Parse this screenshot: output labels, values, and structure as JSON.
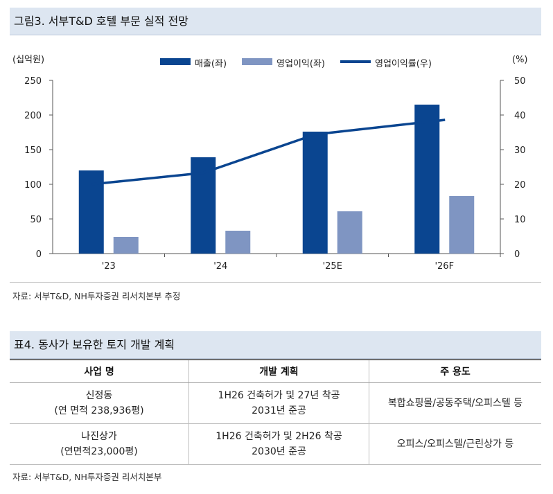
{
  "figure": {
    "title": "그림3. 서부T&D 호텔 부문 실적 전망",
    "source": "자료: 서부T&D, NH투자증권 리서치본부 추정"
  },
  "chart_data": {
    "type": "bar",
    "categories": [
      "'23",
      "'24",
      "'25E",
      "'26F"
    ],
    "series": [
      {
        "name": "매출(좌)",
        "kind": "bar",
        "axis": "left",
        "color": "#0a4590",
        "values": [
          120,
          139,
          176,
          215
        ]
      },
      {
        "name": "영업이익(좌)",
        "kind": "bar",
        "axis": "left",
        "color": "#7f95c2",
        "values": [
          24,
          33,
          61,
          83
        ]
      },
      {
        "name": "영업이익률(우)",
        "kind": "line",
        "axis": "right",
        "color": "#0a4590",
        "values": [
          20.0,
          23.3,
          34.4,
          38.6
        ]
      }
    ],
    "y_left": {
      "unit": "(십억원)",
      "range": [
        0,
        250
      ],
      "ticks": [
        0,
        50,
        100,
        150,
        200,
        250
      ]
    },
    "y_right": {
      "unit": "(%)",
      "range": [
        0,
        50
      ],
      "ticks": [
        0,
        10,
        20,
        30,
        40,
        50
      ]
    },
    "legend_position": "top",
    "grid": false
  },
  "table": {
    "title": "표4. 동사가 보유한 토지 개발 계획",
    "headers": [
      "사업 명",
      "개발 계획",
      "주 용도"
    ],
    "rows": [
      {
        "name": [
          "신정동",
          "(연 면적 238,936평)"
        ],
        "plan": [
          "1H26 건축허가 및 27년 착공",
          "2031년 준공"
        ],
        "use": "복합쇼핑몰/공동주택/오피스텔 등"
      },
      {
        "name": [
          "나진상가",
          "(연면적23,000평)"
        ],
        "plan": [
          "1H26 건축허가 및 2H26 착공",
          "2030년 준공"
        ],
        "use": "오피스/오피스텔/근린상가 등"
      }
    ],
    "source": "자료: 서부T&D, NH투자증권 리서치본부"
  }
}
